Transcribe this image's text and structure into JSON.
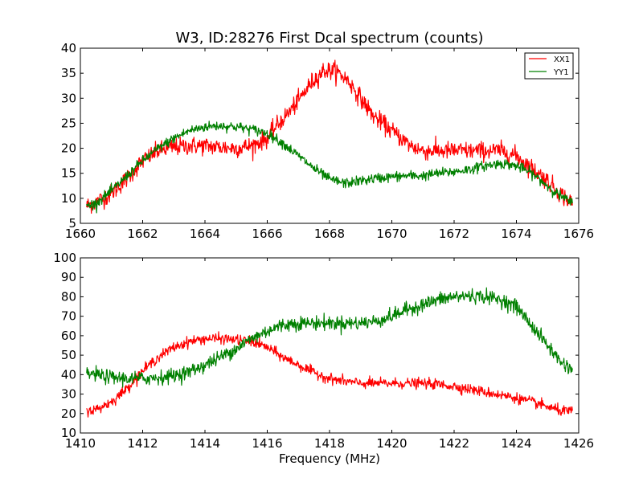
{
  "chart_data": [
    {
      "type": "line",
      "title": "W3, ID:28276 First Dcal spectrum (counts)",
      "xlabel": "",
      "ylabel": "",
      "xlim": [
        1660,
        1676
      ],
      "ylim": [
        5,
        40
      ],
      "xticks": [
        1660,
        1662,
        1664,
        1666,
        1668,
        1670,
        1672,
        1674,
        1676
      ],
      "yticks": [
        5,
        10,
        15,
        20,
        25,
        30,
        35,
        40
      ],
      "legend": {
        "placement": "top-right"
      },
      "series": [
        {
          "name": "XX1",
          "color": "#ff0000",
          "noise": 0.9,
          "x": [
            1660.2,
            1660.5,
            1661.0,
            1661.5,
            1662.0,
            1662.5,
            1663.0,
            1663.5,
            1664.0,
            1664.5,
            1665.0,
            1665.5,
            1666.0,
            1666.3,
            1666.6,
            1667.0,
            1667.4,
            1667.8,
            1668.2,
            1668.6,
            1669.0,
            1669.4,
            1669.8,
            1670.2,
            1670.6,
            1671.0,
            1671.5,
            1672.0,
            1672.5,
            1673.0,
            1673.5,
            1674.0,
            1674.5,
            1675.0,
            1675.4,
            1675.8
          ],
          "y": [
            8.5,
            9.2,
            11.0,
            14.0,
            17.5,
            19.5,
            20.2,
            20.5,
            20.5,
            20.2,
            20.0,
            20.5,
            22.0,
            24.5,
            26.5,
            29.5,
            33.0,
            35.5,
            35.5,
            33.5,
            30.0,
            26.5,
            24.5,
            22.5,
            20.5,
            19.5,
            19.5,
            19.5,
            19.5,
            19.5,
            19.5,
            18.5,
            16.0,
            13.5,
            11.0,
            9.0
          ]
        },
        {
          "name": "YY1",
          "color": "#008000",
          "noise": 0.5,
          "x": [
            1660.2,
            1660.5,
            1661.0,
            1661.5,
            1662.0,
            1662.5,
            1663.0,
            1663.5,
            1664.0,
            1664.5,
            1665.0,
            1665.5,
            1666.0,
            1666.5,
            1667.0,
            1667.5,
            1668.0,
            1668.5,
            1669.0,
            1669.5,
            1670.0,
            1670.5,
            1671.0,
            1671.5,
            1672.0,
            1672.5,
            1673.0,
            1673.5,
            1674.0,
            1674.5,
            1675.0,
            1675.4,
            1675.8
          ],
          "y": [
            8.5,
            9.0,
            11.5,
            14.5,
            17.5,
            20.0,
            22.0,
            23.5,
            24.3,
            24.5,
            24.3,
            23.8,
            23.0,
            21.0,
            18.5,
            16.0,
            13.8,
            13.0,
            13.5,
            14.0,
            14.3,
            14.5,
            14.5,
            15.0,
            15.3,
            15.8,
            16.5,
            17.0,
            16.5,
            15.0,
            12.5,
            10.5,
            9.0
          ]
        }
      ]
    },
    {
      "type": "line",
      "title": "",
      "xlabel": "Frequency (MHz)",
      "ylabel": "",
      "xlim": [
        1410,
        1426
      ],
      "ylim": [
        10,
        100
      ],
      "xticks": [
        1410,
        1412,
        1414,
        1416,
        1418,
        1420,
        1422,
        1424,
        1426
      ],
      "yticks": [
        10,
        20,
        30,
        40,
        50,
        60,
        70,
        80,
        90,
        100
      ],
      "series": [
        {
          "color": "#ff0000",
          "noise": 1.3,
          "x": [
            1410.2,
            1410.5,
            1411.0,
            1411.5,
            1412.0,
            1412.5,
            1413.0,
            1413.5,
            1414.0,
            1414.5,
            1415.0,
            1415.5,
            1416.0,
            1416.5,
            1417.0,
            1417.5,
            1418.0,
            1418.5,
            1419.0,
            1419.5,
            1420.0,
            1420.5,
            1421.0,
            1421.5,
            1422.0,
            1422.5,
            1423.0,
            1423.5,
            1424.0,
            1424.5,
            1425.0,
            1425.4,
            1425.8
          ],
          "y": [
            21.5,
            22.0,
            26.0,
            33.0,
            42.0,
            49.0,
            54.0,
            57.0,
            58.5,
            58.5,
            58.0,
            57.0,
            54.0,
            49.0,
            45.0,
            41.0,
            38.0,
            36.5,
            35.5,
            35.5,
            35.5,
            35.5,
            35.5,
            35.0,
            34.0,
            32.5,
            31.0,
            29.5,
            28.0,
            26.0,
            23.5,
            21.5,
            21.0
          ]
        },
        {
          "color": "#008000",
          "noise": 1.8,
          "x": [
            1410.2,
            1410.5,
            1411.0,
            1411.5,
            1412.0,
            1412.5,
            1413.0,
            1413.5,
            1414.0,
            1414.5,
            1415.0,
            1415.5,
            1416.0,
            1416.5,
            1417.0,
            1417.5,
            1418.0,
            1418.5,
            1419.0,
            1419.5,
            1420.0,
            1420.5,
            1421.0,
            1421.5,
            1422.0,
            1422.5,
            1423.0,
            1423.5,
            1424.0,
            1424.5,
            1425.0,
            1425.4,
            1425.8
          ],
          "y": [
            40.5,
            40.0,
            38.5,
            38.0,
            38.0,
            38.5,
            39.5,
            41.5,
            45.0,
            49.0,
            53.5,
            58.5,
            62.5,
            65.5,
            66.5,
            66.5,
            66.5,
            66.5,
            66.5,
            67.5,
            70.0,
            73.5,
            76.0,
            78.5,
            80.0,
            80.5,
            80.0,
            78.5,
            75.0,
            65.0,
            55.0,
            47.0,
            42.5
          ]
        }
      ]
    }
  ]
}
